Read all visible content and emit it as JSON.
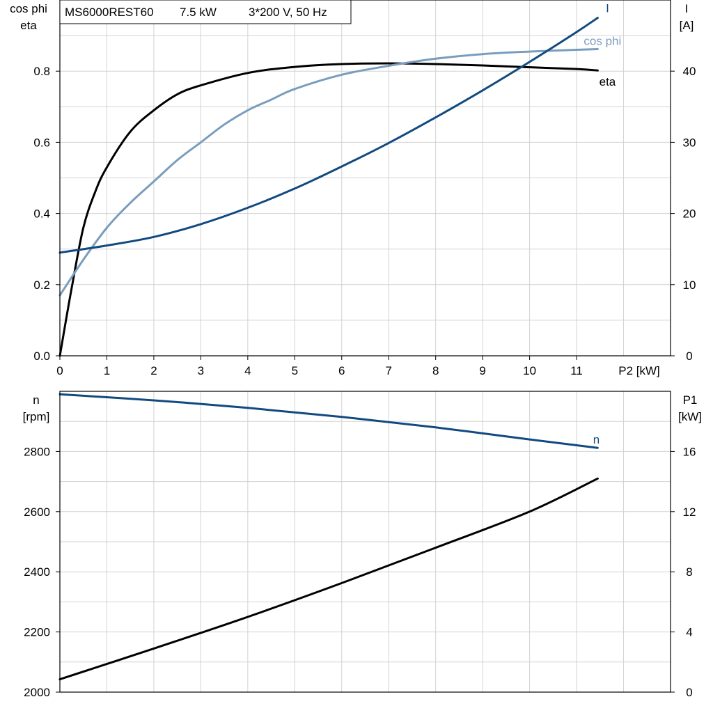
{
  "header": {
    "model": "MS6000REST60",
    "rating": "7.5 kW",
    "supply": "3*200 V, 50 Hz"
  },
  "chart_data": [
    {
      "type": "line",
      "xlabel": "P2 [kW]",
      "left_axis_label": [
        "cos phi",
        "eta"
      ],
      "right_axis_label": [
        "I",
        "[A]"
      ],
      "xlim": [
        0,
        13
      ],
      "ylim_left": [
        0,
        1
      ],
      "ylim_right": [
        0,
        50
      ],
      "x_ticks": [
        0,
        1,
        2,
        3,
        4,
        5,
        6,
        7,
        8,
        9,
        10,
        11
      ],
      "y_ticks_left": [
        "0.0",
        "0.2",
        "0.4",
        "0.6",
        "0.8"
      ],
      "y_ticks_right": [
        "0",
        "10",
        "20",
        "30",
        "40"
      ],
      "grid": true,
      "colors": {
        "eta": "#000000",
        "cos_phi": "#7a9dbd",
        "I": "#124a80"
      },
      "series": [
        {
          "name": "eta",
          "axis": "left",
          "color": "#000000",
          "x": [
            0,
            0.25,
            0.5,
            0.75,
            1.0,
            1.5,
            2.0,
            2.5,
            3.0,
            4.0,
            5.0,
            6.0,
            7.0,
            8.0,
            9.0,
            10.0,
            11.0,
            11.45
          ],
          "y": [
            0.0,
            0.19,
            0.36,
            0.46,
            0.53,
            0.63,
            0.69,
            0.735,
            0.76,
            0.795,
            0.812,
            0.82,
            0.822,
            0.82,
            0.816,
            0.811,
            0.806,
            0.802
          ]
        },
        {
          "name": "cos phi",
          "axis": "left",
          "color": "#7a9dbd",
          "x": [
            0,
            0.5,
            1.0,
            1.5,
            2.0,
            2.5,
            3.0,
            3.5,
            4.0,
            4.5,
            5.0,
            6.0,
            7.0,
            8.0,
            9.0,
            10.0,
            11.0,
            11.45
          ],
          "y": [
            0.17,
            0.27,
            0.36,
            0.43,
            0.49,
            0.55,
            0.6,
            0.65,
            0.69,
            0.72,
            0.75,
            0.79,
            0.815,
            0.835,
            0.848,
            0.855,
            0.86,
            0.862
          ]
        },
        {
          "name": "I",
          "axis": "right",
          "color": "#124a80",
          "x": [
            0,
            1,
            2,
            3,
            4,
            5,
            6,
            7,
            8,
            9,
            10,
            11,
            11.45
          ],
          "y": [
            14.5,
            15.5,
            16.7,
            18.5,
            20.8,
            23.5,
            26.6,
            29.9,
            33.5,
            37.3,
            41.3,
            45.5,
            47.5
          ]
        }
      ]
    },
    {
      "type": "line",
      "left_axis_label": [
        "n",
        "[rpm]"
      ],
      "right_axis_label": [
        "P1",
        "[kW]"
      ],
      "xlim": [
        0,
        13
      ],
      "ylim_left": [
        2000,
        3000
      ],
      "ylim_right": [
        0,
        20
      ],
      "y_ticks_left": [
        "2000",
        "2200",
        "2400",
        "2600",
        "2800"
      ],
      "y_ticks_right": [
        "0",
        "4",
        "8",
        "12",
        "16"
      ],
      "grid": true,
      "colors": {
        "n": "#124a80",
        "P1": "#000000"
      },
      "series": [
        {
          "name": "n",
          "axis": "left",
          "color": "#124a80",
          "x": [
            0,
            2,
            4,
            6,
            8,
            10,
            11.45
          ],
          "y": [
            2990,
            2970,
            2945,
            2915,
            2880,
            2840,
            2812
          ]
        },
        {
          "name": "P1",
          "axis": "right",
          "color": "#000000",
          "x": [
            0,
            2,
            4,
            6,
            8,
            10,
            11.45
          ],
          "y": [
            0.85,
            2.9,
            5.0,
            7.25,
            9.6,
            12.0,
            14.2
          ]
        }
      ]
    }
  ]
}
